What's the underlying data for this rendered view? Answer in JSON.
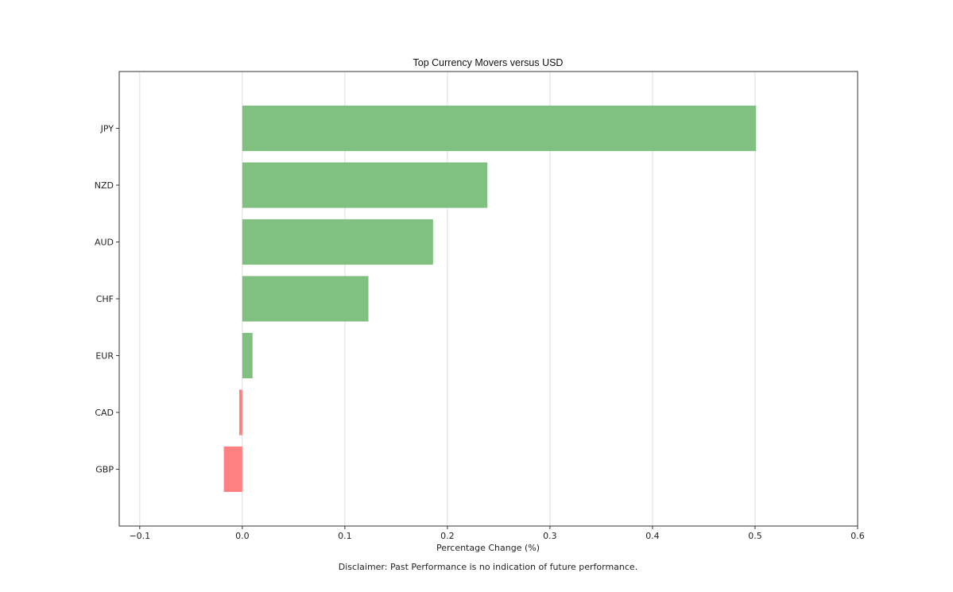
{
  "chart_data": {
    "type": "bar",
    "orientation": "horizontal",
    "title": "Top Currency Movers versus USD",
    "xlabel": "Percentage Change (%)",
    "ylabel": "",
    "categories": [
      "JPY",
      "NZD",
      "AUD",
      "CHF",
      "EUR",
      "CAD",
      "GBP"
    ],
    "values": [
      0.501,
      0.239,
      0.186,
      0.123,
      0.01,
      -0.003,
      -0.018
    ],
    "xlim": [
      -0.12,
      0.6
    ],
    "xticks": [
      "−0.1",
      "0.0",
      "0.1",
      "0.2",
      "0.3",
      "0.4",
      "0.5",
      "0.6"
    ],
    "xtick_values": [
      -0.1,
      0.0,
      0.1,
      0.2,
      0.3,
      0.4,
      0.5,
      0.6
    ],
    "grid": "vertical",
    "colors": {
      "positive": "#80c080",
      "negative": "#ff8080",
      "grid": "#dddddd",
      "frame": "#333333"
    }
  },
  "footer": {
    "disclaimer": "Disclaimer: Past Performance is no indication of future performance."
  }
}
